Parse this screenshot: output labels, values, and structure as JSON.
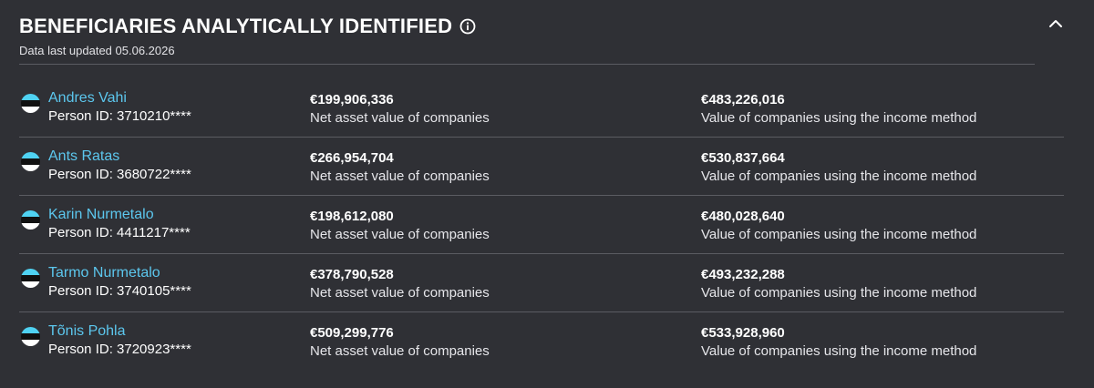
{
  "header": {
    "title": "BENEFICIARIES ANALYTICALLY IDENTIFIED",
    "updated": "Data last updated 05.06.2026",
    "info_icon": "info-circle-icon",
    "collapse_icon": "chevron-up-icon"
  },
  "colors": {
    "background": "#2f3035",
    "link": "#5cc7ee",
    "divider": "#5b5c62",
    "flag_blue": "#4fd2f2",
    "flag_black": "#111111",
    "flag_white": "#ffffff"
  },
  "flag_icon": "estonia-flag-icon",
  "beneficiaries": [
    {
      "name": "Andres Vahi",
      "person_id": "Person ID: 3710210****",
      "net_value": "€199,906,336",
      "net_label": "Net asset value of companies",
      "income_value": "€483,226,016",
      "income_label": "Value of companies using the income method"
    },
    {
      "name": "Ants Ratas",
      "person_id": "Person ID: 3680722****",
      "net_value": "€266,954,704",
      "net_label": "Net asset value of companies",
      "income_value": "€530,837,664",
      "income_label": "Value of companies using the income method"
    },
    {
      "name": "Karin Nurmetalo",
      "person_id": "Person ID: 4411217****",
      "net_value": "€198,612,080",
      "net_label": "Net asset value of companies",
      "income_value": "€480,028,640",
      "income_label": "Value of companies using the income method"
    },
    {
      "name": "Tarmo Nurmetalo",
      "person_id": "Person ID: 3740105****",
      "net_value": "€378,790,528",
      "net_label": "Net asset value of companies",
      "income_value": "€493,232,288",
      "income_label": "Value of companies using the income method"
    },
    {
      "name": "Tõnis Pohla",
      "person_id": "Person ID: 3720923****",
      "net_value": "€509,299,776",
      "net_label": "Net asset value of companies",
      "income_value": "€533,928,960",
      "income_label": "Value of companies using the income method"
    }
  ]
}
